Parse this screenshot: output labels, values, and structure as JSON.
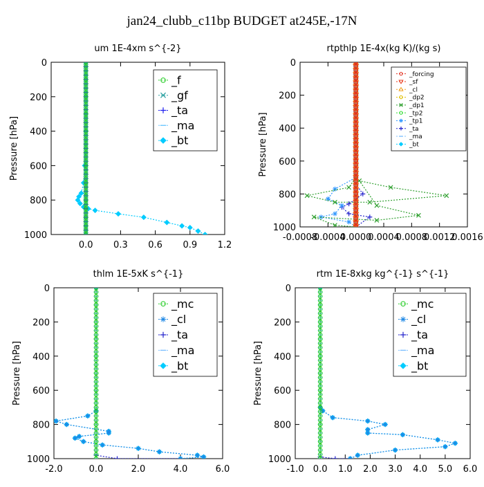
{
  "figure": {
    "title": "jan24_clubb_c11bp  BUDGET at245E,-17N"
  },
  "chart_data": [
    {
      "type": "line",
      "title": "um   1E-4xm s^{-2}",
      "ylabel": "Pressure [hPa]",
      "xlim": [
        -0.3,
        1.2
      ],
      "ylim": [
        1000,
        0
      ],
      "xticks": [
        0.0,
        0.3,
        0.6,
        0.9,
        1.2
      ],
      "xtick_labels": [
        "0.0",
        "0.3",
        "0.6",
        "0.9",
        "1.2"
      ],
      "yticks": [
        0,
        200,
        400,
        600,
        800,
        1000
      ],
      "ytick_labels": [
        "0",
        "200",
        "400",
        "600",
        "800",
        "1000"
      ],
      "legend": "top-right",
      "series": [
        {
          "name": "_f",
          "color": "#22cc22",
          "marker": "circle",
          "points": [
            [
              0,
              0
            ],
            [
              0,
              100
            ],
            [
              0,
              200
            ],
            [
              0,
              300
            ],
            [
              0,
              400
            ],
            [
              0,
              500
            ],
            [
              0,
              600
            ],
            [
              0,
              700
            ],
            [
              0,
              800
            ],
            [
              0,
              850
            ],
            [
              0,
              900
            ],
            [
              0,
              950
            ],
            [
              0,
              1000
            ]
          ]
        },
        {
          "name": "_gf",
          "color": "#2aa0a0",
          "marker": "x",
          "points": [
            [
              0,
              0
            ],
            [
              0,
              1000
            ]
          ]
        },
        {
          "name": "_ta",
          "color": "#1a1aee",
          "marker": "plus",
          "points": [
            [
              0,
              0
            ],
            [
              0,
              1000
            ]
          ]
        },
        {
          "name": "_ma",
          "color": "#6ec8ff",
          "marker": "dash",
          "points": [
            [
              0,
              0
            ],
            [
              0,
              1000
            ]
          ]
        },
        {
          "name": "_bt",
          "color": "#00ccff",
          "marker": "diamond",
          "points": [
            [
              0,
              0
            ],
            [
              0,
              400
            ],
            [
              -0.01,
              600
            ],
            [
              -0.02,
              700
            ],
            [
              -0.04,
              760
            ],
            [
              -0.06,
              780
            ],
            [
              -0.07,
              800
            ],
            [
              -0.05,
              820
            ],
            [
              -0.02,
              840
            ],
            [
              0.02,
              850
            ],
            [
              0.08,
              860
            ],
            [
              0.28,
              880
            ],
            [
              0.5,
              900
            ],
            [
              0.7,
              930
            ],
            [
              0.83,
              950
            ],
            [
              0.9,
              960
            ],
            [
              0.97,
              980
            ],
            [
              1.03,
              1000
            ]
          ]
        }
      ]
    },
    {
      "type": "line",
      "title": "rtpthlp  1E-4x(kg K)/(kg s)",
      "ylabel": "Pressure [hPa]",
      "xlim": [
        -0.0008,
        0.0016
      ],
      "ylim": [
        1000,
        0
      ],
      "xticks": [
        -0.0008,
        -0.0004,
        0.0,
        0.0004,
        0.0008,
        0.0012,
        0.0016
      ],
      "xtick_labels": [
        "-0.0008",
        "-0.0004",
        "0.0000",
        "0.0004",
        "0.0008",
        "0.0012",
        "0.0016"
      ],
      "yticks": [
        0,
        200,
        400,
        600,
        800,
        1000
      ],
      "ytick_labels": [
        "0",
        "200",
        "400",
        "600",
        "800",
        "1000"
      ],
      "legend": "top-right",
      "series": [
        {
          "name": "_forcing",
          "color": "#e03020",
          "marker": "circle",
          "points": [
            [
              0,
              0
            ],
            [
              0,
              100
            ],
            [
              0,
              200
            ],
            [
              0,
              300
            ],
            [
              0,
              400
            ],
            [
              0,
              500
            ],
            [
              0,
              600
            ],
            [
              0,
              700
            ],
            [
              0,
              800
            ],
            [
              0,
              900
            ],
            [
              0,
              1000
            ]
          ]
        },
        {
          "name": "_sf",
          "color": "#e83a1c",
          "marker": "triangle-down",
          "points": [
            [
              0,
              0
            ],
            [
              0,
              1000
            ]
          ]
        },
        {
          "name": "_cl",
          "color": "#f0a020",
          "marker": "triangle-up",
          "points": [
            [
              0,
              0
            ],
            [
              0,
              1000
            ]
          ]
        },
        {
          "name": "_dp2",
          "color": "#e0c000",
          "marker": "circle",
          "points": [
            [
              0,
              0
            ],
            [
              0,
              1000
            ]
          ]
        },
        {
          "name": "_dp1",
          "color": "#30a030",
          "marker": "x",
          "points": [
            [
              0,
              0
            ],
            [
              0,
              700
            ],
            [
              -0.0001,
              760
            ],
            [
              -0.0007,
              810
            ],
            [
              -0.0003,
              850
            ],
            [
              0.0002,
              850
            ],
            [
              0.0013,
              810
            ],
            [
              0.0005,
              760
            ],
            [
              5e-05,
              720
            ],
            [
              0.0003,
              870
            ],
            [
              0.0009,
              930
            ],
            [
              0.0003,
              960
            ],
            [
              -0.0006,
              940
            ],
            [
              -0.0003,
              990
            ],
            [
              0,
              1000
            ]
          ]
        },
        {
          "name": "_tp2",
          "color": "#33dd33",
          "marker": "circle",
          "points": [
            [
              0,
              0
            ],
            [
              0,
              1000
            ]
          ]
        },
        {
          "name": "_tp1",
          "color": "#3399ff",
          "marker": "asterisk",
          "points": [
            [
              0,
              0
            ],
            [
              0,
              700
            ],
            [
              -0.0003,
              770
            ],
            [
              -0.0004,
              830
            ],
            [
              -0.0002,
              870
            ],
            [
              -0.0003,
              920
            ],
            [
              -0.0005,
              940
            ],
            [
              -0.0001,
              970
            ],
            [
              0,
              1000
            ]
          ]
        },
        {
          "name": "_ta",
          "color": "#2222cc",
          "marker": "plus",
          "points": [
            [
              0,
              0
            ],
            [
              0,
              740
            ],
            [
              0.0001,
              800
            ],
            [
              -0.0001,
              860
            ],
            [
              -0.0002,
              880
            ],
            [
              -0.0001,
              920
            ],
            [
              0.0002,
              940
            ],
            [
              0,
              1000
            ]
          ]
        },
        {
          "name": "_ma",
          "color": "#7fc0ff",
          "marker": "dash",
          "points": [
            [
              0,
              0
            ],
            [
              0,
              1000
            ]
          ]
        },
        {
          "name": "_bt",
          "color": "#00ccff",
          "marker": "diamond",
          "points": [
            [
              0,
              0
            ],
            [
              0,
              1000
            ]
          ]
        }
      ]
    },
    {
      "type": "line",
      "title": "thlm   1E-5xK  s^{-1}",
      "ylabel": "Pressure [hPa]",
      "xlim": [
        -2.0,
        6.0
      ],
      "ylim": [
        1000,
        0
      ],
      "xticks": [
        -2.0,
        0.0,
        2.0,
        4.0,
        6.0
      ],
      "xtick_labels": [
        "-2.0",
        "0.0",
        "2.0",
        "4.0",
        "6.0"
      ],
      "yticks": [
        0,
        200,
        400,
        600,
        800,
        1000
      ],
      "ytick_labels": [
        "0",
        "200",
        "400",
        "600",
        "800",
        "1000"
      ],
      "legend": "top-right",
      "series": [
        {
          "name": "_mc",
          "color": "#22cc22",
          "marker": "circle",
          "points": [
            [
              0,
              0
            ],
            [
              0,
              100
            ],
            [
              0,
              200
            ],
            [
              0,
              300
            ],
            [
              0,
              400
            ],
            [
              0,
              500
            ],
            [
              0,
              600
            ],
            [
              0,
              700
            ],
            [
              0,
              800
            ],
            [
              0,
              900
            ],
            [
              0,
              1000
            ]
          ]
        },
        {
          "name": "_cl",
          "color": "#1e88e5",
          "marker": "asterisk",
          "points": [
            [
              0,
              0
            ],
            [
              0,
              720
            ],
            [
              -0.4,
              750
            ],
            [
              -1.9,
              780
            ],
            [
              -1.4,
              800
            ],
            [
              0.6,
              840
            ],
            [
              0.6,
              850
            ],
            [
              -0.8,
              870
            ],
            [
              -1.0,
              880
            ],
            [
              -0.6,
              900
            ],
            [
              0.3,
              920
            ],
            [
              2.0,
              940
            ],
            [
              3.0,
              960
            ],
            [
              4.8,
              980
            ],
            [
              5.1,
              990
            ],
            [
              4.0,
              1000
            ]
          ]
        },
        {
          "name": "_ta",
          "color": "#2222cc",
          "marker": "plus",
          "points": [
            [
              0,
              0
            ],
            [
              0,
              980
            ],
            [
              1.0,
              1000
            ],
            [
              4.0,
              1000
            ]
          ]
        },
        {
          "name": "_ma",
          "color": "#7fc0ff",
          "marker": "dash",
          "points": [
            [
              0,
              0
            ],
            [
              0,
              1000
            ]
          ]
        },
        {
          "name": "_bt",
          "color": "#00ccff",
          "marker": "diamond",
          "points": [
            [
              0,
              0
            ],
            [
              0,
              720
            ],
            [
              -0.4,
              750
            ],
            [
              -1.9,
              780
            ],
            [
              -1.4,
              800
            ],
            [
              0.6,
              840
            ],
            [
              0.6,
              850
            ],
            [
              -0.8,
              870
            ],
            [
              -1.0,
              880
            ],
            [
              -0.6,
              900
            ],
            [
              0.3,
              920
            ],
            [
              2.0,
              940
            ],
            [
              3.0,
              960
            ],
            [
              4.8,
              980
            ],
            [
              5.1,
              990
            ],
            [
              4.0,
              1000
            ]
          ]
        }
      ]
    },
    {
      "type": "line",
      "title": "rtm   1E-8xkg kg^{-1} s^{-1}",
      "ylabel": "Pressure [hPa]",
      "xlim": [
        -1.0,
        6.0
      ],
      "ylim": [
        1000,
        0
      ],
      "xticks": [
        -1.0,
        0.0,
        1.0,
        2.0,
        3.0,
        4.0,
        5.0,
        6.0
      ],
      "xtick_labels": [
        "-1.0",
        "0.0",
        "1.0",
        "2.0",
        "3.0",
        "4.0",
        "5.0",
        "6.0"
      ],
      "yticks": [
        0,
        200,
        400,
        600,
        800,
        1000
      ],
      "ytick_labels": [
        "0",
        "200",
        "400",
        "600",
        "800",
        "1000"
      ],
      "legend": "top-right",
      "series": [
        {
          "name": "_mc",
          "color": "#22cc22",
          "marker": "circle",
          "points": [
            [
              0,
              0
            ],
            [
              0,
              100
            ],
            [
              0,
              200
            ],
            [
              0,
              300
            ],
            [
              0,
              400
            ],
            [
              0,
              500
            ],
            [
              0,
              600
            ],
            [
              0,
              700
            ],
            [
              0,
              800
            ],
            [
              0,
              900
            ],
            [
              0,
              1000
            ]
          ]
        },
        {
          "name": "_cl",
          "color": "#1e88e5",
          "marker": "asterisk",
          "points": [
            [
              0,
              0
            ],
            [
              0,
              700
            ],
            [
              0.1,
              720
            ],
            [
              0.5,
              760
            ],
            [
              1.9,
              780
            ],
            [
              2.6,
              800
            ],
            [
              1.9,
              830
            ],
            [
              1.9,
              850
            ],
            [
              3.3,
              860
            ],
            [
              4.7,
              890
            ],
            [
              5.4,
              910
            ],
            [
              5.0,
              930
            ],
            [
              3.0,
              950
            ],
            [
              1.5,
              980
            ],
            [
              1.2,
              1000
            ]
          ]
        },
        {
          "name": "_ta",
          "color": "#2222cc",
          "marker": "plus",
          "points": [
            [
              0,
              0
            ],
            [
              0,
              990
            ],
            [
              0.6,
              1000
            ],
            [
              1.2,
              1000
            ]
          ]
        },
        {
          "name": "_ma",
          "color": "#7fc0ff",
          "marker": "dash",
          "points": [
            [
              0,
              0
            ],
            [
              0,
              1000
            ]
          ]
        },
        {
          "name": "_bt",
          "color": "#00ccff",
          "marker": "diamond",
          "points": [
            [
              0,
              0
            ],
            [
              0,
              700
            ],
            [
              0.1,
              720
            ],
            [
              0.5,
              760
            ],
            [
              1.9,
              780
            ],
            [
              2.6,
              800
            ],
            [
              1.9,
              830
            ],
            [
              1.9,
              850
            ],
            [
              3.3,
              860
            ],
            [
              4.7,
              890
            ],
            [
              5.4,
              910
            ],
            [
              5.0,
              930
            ],
            [
              3.0,
              950
            ],
            [
              1.5,
              980
            ],
            [
              1.2,
              1000
            ]
          ]
        }
      ]
    }
  ]
}
